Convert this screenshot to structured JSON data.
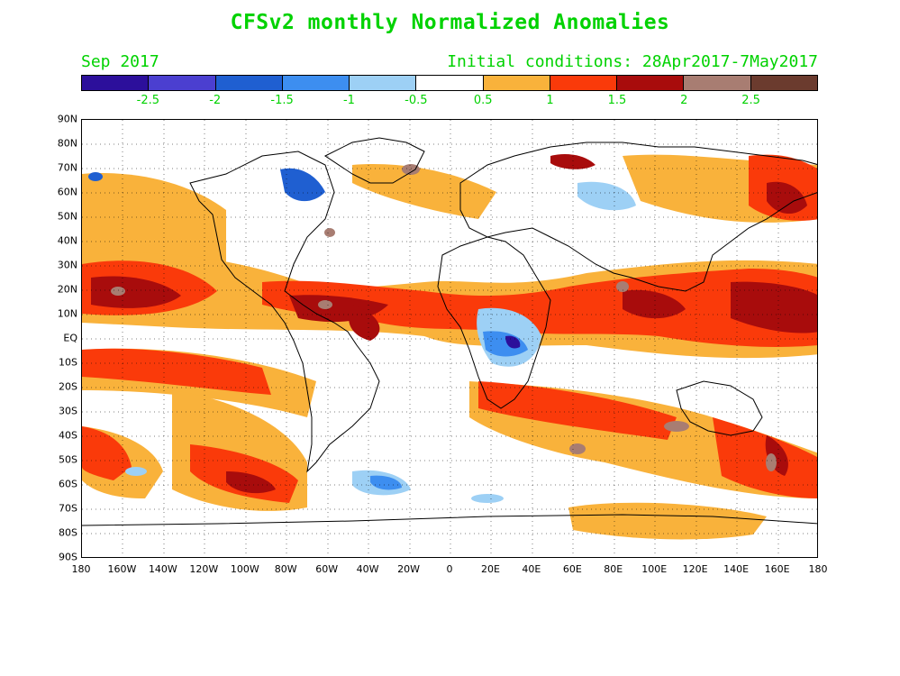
{
  "title": "CFSv2 monthly Normalized Anomalies",
  "month_label": "Sep 2017",
  "init_label": "Initial conditions: 28Apr2017-7May2017",
  "colorbar": {
    "colors": [
      "#2c0f9b",
      "#4b3fd0",
      "#1f5fd1",
      "#3d8ef0",
      "#9dd0f5",
      "#ffffff",
      "#f9b23b",
      "#fa3a0a",
      "#a80c0c",
      "#a87d72",
      "#6b3b2e"
    ],
    "labels": [
      "-2.5",
      "-2",
      "-1.5",
      "-1",
      "-0.5",
      "0.5",
      "1",
      "1.5",
      "2",
      "2.5"
    ]
  },
  "lat_labels": [
    "90N",
    "80N",
    "70N",
    "60N",
    "50N",
    "40N",
    "30N",
    "20N",
    "10N",
    "EQ",
    "10S",
    "20S",
    "30S",
    "40S",
    "50S",
    "60S",
    "70S",
    "80S",
    "90S"
  ],
  "lon_labels": [
    "180",
    "160W",
    "140W",
    "120W",
    "100W",
    "80W",
    "60W",
    "40W",
    "20W",
    "0",
    "20E",
    "40E",
    "60E",
    "80E",
    "100E",
    "120E",
    "140E",
    "160E",
    "180"
  ]
}
